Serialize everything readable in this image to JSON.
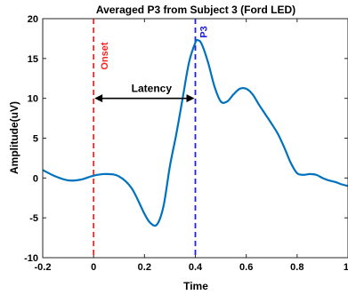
{
  "chart_data": {
    "type": "line",
    "title": "Averaged P3 from Subject 3 (Ford LED)",
    "xlabel": "Time",
    "ylabel": "Amplitude(uV)",
    "xlim": [
      -0.2,
      1
    ],
    "ylim": [
      -10,
      20
    ],
    "xticks": [
      "-0.2",
      "0",
      "0.2",
      "0.4",
      "0.6",
      "0.8",
      "1"
    ],
    "yticks": [
      "-10",
      "-5",
      "0",
      "5",
      "10",
      "15",
      "20"
    ],
    "grid": false,
    "series": [
      {
        "color": "#0072BD",
        "x": [
          -0.2,
          -0.15,
          -0.1,
          -0.05,
          0,
          0.05,
          0.1,
          0.15,
          0.2,
          0.225,
          0.25,
          0.275,
          0.3,
          0.325,
          0.35,
          0.375,
          0.4,
          0.41,
          0.425,
          0.45,
          0.475,
          0.5,
          0.525,
          0.55,
          0.575,
          0.6,
          0.625,
          0.65,
          0.675,
          0.7,
          0.725,
          0.75,
          0.775,
          0.8,
          0.825,
          0.85,
          0.875,
          0.9,
          0.925,
          0.95,
          0.975,
          1
        ],
        "y": [
          1,
          0.2,
          -0.3,
          -0.2,
          0.3,
          0.5,
          0.2,
          -1.3,
          -4.5,
          -5.7,
          -5.8,
          -3.5,
          1.5,
          5.5,
          10,
          14.5,
          17,
          17.3,
          16.8,
          14.5,
          11.5,
          9.6,
          9.6,
          10.5,
          11.2,
          11.2,
          10.5,
          9.2,
          8,
          6.8,
          5.5,
          3.8,
          1.9,
          0.6,
          0.4,
          0.5,
          0.4,
          0,
          -0.3,
          -0.5,
          -0.8,
          -1
        ]
      }
    ],
    "onset": {
      "label": "Onset",
      "x": 0,
      "color": "#FF2020"
    },
    "peak": {
      "label": "P3",
      "x": 0.4,
      "color": "#2020E0"
    },
    "latency": {
      "label": "Latency",
      "y": 10,
      "x_start": 0,
      "x_end": 0.4
    }
  }
}
